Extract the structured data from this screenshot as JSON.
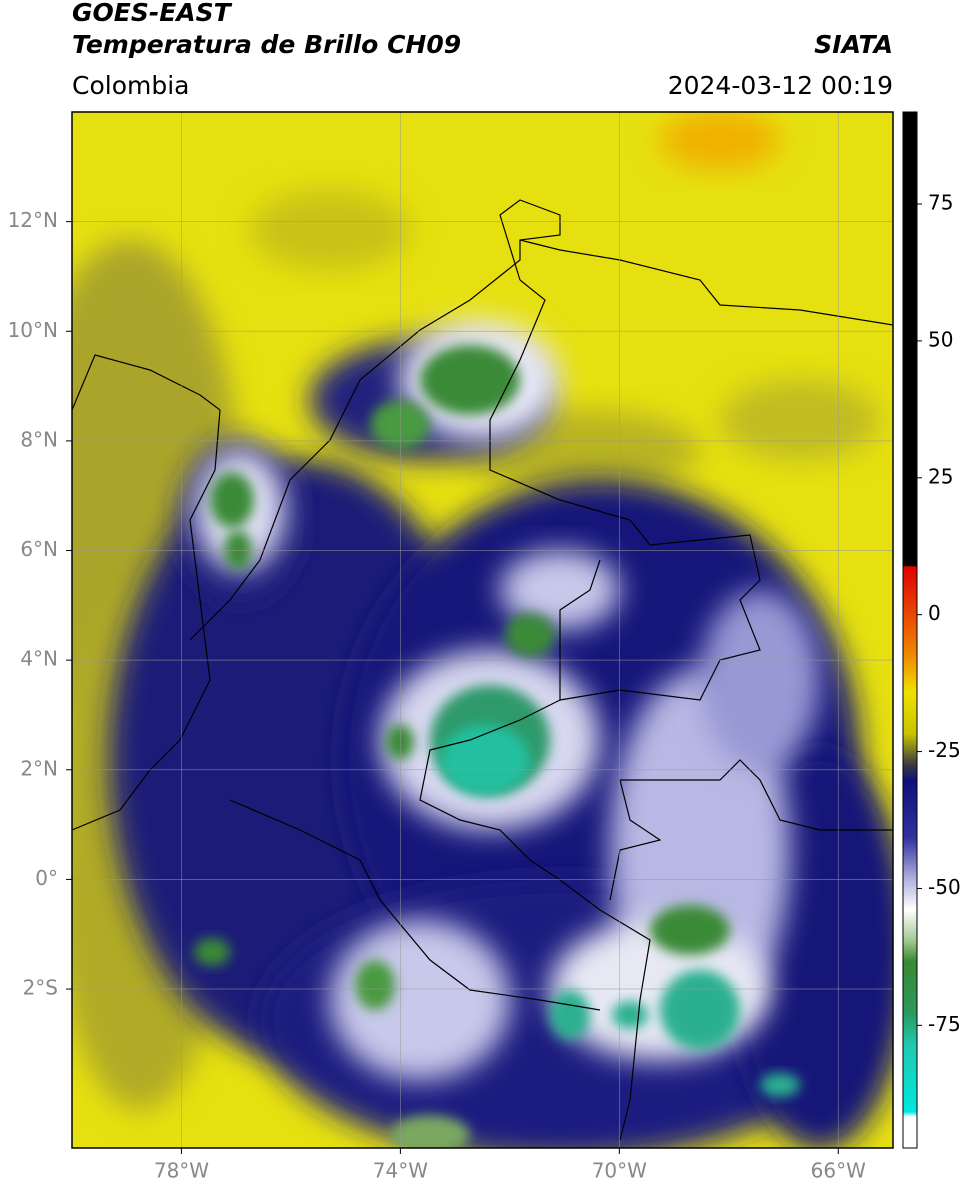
{
  "header": {
    "source": "GOES-EAST",
    "product": "Temperatura de Brillo CH09",
    "agency": "SIATA",
    "region": "Colombia",
    "datetime": "2024-03-12 00:19"
  },
  "map": {
    "xlim": [
      -80,
      -65
    ],
    "ylim": [
      -4.9,
      14
    ],
    "xticks": [
      {
        "value": -78,
        "label": "78°W"
      },
      {
        "value": -74,
        "label": "74°W"
      },
      {
        "value": -70,
        "label": "70°W"
      },
      {
        "value": -66,
        "label": "66°W"
      }
    ],
    "yticks": [
      {
        "value": 12,
        "label": "12°N"
      },
      {
        "value": 10,
        "label": "10°N"
      },
      {
        "value": 8,
        "label": "8°N"
      },
      {
        "value": 6,
        "label": "6°N"
      },
      {
        "value": 4,
        "label": "4°N"
      },
      {
        "value": 2,
        "label": "2°N"
      },
      {
        "value": 0,
        "label": "0°"
      },
      {
        "value": -2,
        "label": "2°S"
      }
    ],
    "grid": true
  },
  "colorbar": {
    "lim": [
      -97.4,
      91.8
    ],
    "ticks": [
      75,
      50,
      25,
      0,
      -25,
      -50,
      -75
    ]
  }
}
